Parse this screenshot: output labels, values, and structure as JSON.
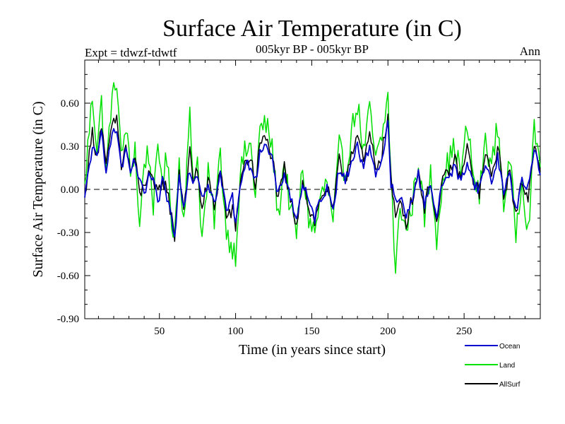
{
  "chart_data": {
    "type": "line",
    "title": "Surface Air Temperature (in C)",
    "subtitle_left": "Expt = tdwzf-tdwtf",
    "subtitle_center": "005kyr BP - 005kyr BP",
    "subtitle_right": "Ann",
    "xlabel": "Time (in years since start)",
    "ylabel": "Surface Air Temperature (in C)",
    "xlim": [
      1,
      300
    ],
    "ylim": [
      -0.9,
      0.9
    ],
    "xticks": [
      50,
      100,
      150,
      200,
      250
    ],
    "xtick_labels": [
      "50",
      "100",
      "150",
      "200",
      "250"
    ],
    "yticks": [
      -0.9,
      -0.6,
      -0.3,
      0.0,
      0.3,
      0.6
    ],
    "ytick_labels": [
      "-0.90",
      "-0.60",
      "-0.30",
      "0.00",
      "0.30",
      "0.60"
    ],
    "zero_line": true,
    "legend_position": "bottom-right",
    "series": [
      {
        "name": "Ocean",
        "color": "#0000cc",
        "anchors_x": [
          1,
          3,
          6,
          9,
          12,
          15,
          18,
          22,
          25,
          28,
          31,
          34,
          37,
          40,
          43,
          46,
          49,
          52,
          55,
          58,
          60,
          63,
          66,
          70,
          72,
          75,
          78,
          82,
          86,
          90,
          94,
          98,
          100,
          103,
          106,
          110,
          113,
          116,
          120,
          124,
          128,
          132,
          136,
          140,
          144,
          148,
          152,
          156,
          160,
          164,
          168,
          172,
          176,
          180,
          184,
          188,
          192,
          196,
          200,
          202,
          205,
          208,
          212,
          216,
          220,
          224,
          228,
          232,
          236,
          240,
          244,
          248,
          252,
          256,
          260,
          264,
          268,
          272,
          276,
          280,
          284,
          288,
          292,
          296,
          300
        ],
        "anchors_y": [
          -0.08,
          0.1,
          0.3,
          0.2,
          0.4,
          0.15,
          0.35,
          0.42,
          0.15,
          0.25,
          0.12,
          0.2,
          0.05,
          -0.05,
          0.1,
          0.05,
          -0.1,
          0.05,
          -0.05,
          -0.2,
          -0.35,
          0.1,
          -0.1,
          0.15,
          0.05,
          0.12,
          -0.05,
          0.05,
          -0.1,
          0.1,
          -0.15,
          -0.05,
          -0.25,
          0.05,
          0.15,
          0.18,
          0.05,
          0.28,
          0.3,
          0.2,
          -0.05,
          0.12,
          -0.05,
          -0.22,
          0.05,
          -0.1,
          -0.2,
          -0.05,
          0.0,
          -0.12,
          0.15,
          0.05,
          0.2,
          0.3,
          0.15,
          0.3,
          0.12,
          0.2,
          0.45,
          0.05,
          -0.1,
          -0.05,
          -0.2,
          -0.05,
          0.1,
          -0.1,
          0.05,
          -0.2,
          0.05,
          0.1,
          0.15,
          0.05,
          0.2,
          0.05,
          0.0,
          0.18,
          0.05,
          0.22,
          0.0,
          0.1,
          -0.15,
          0.05,
          0.0,
          0.3,
          0.12
        ]
      },
      {
        "name": "Land",
        "color": "#00e000",
        "anchors_x": [
          1,
          3,
          6,
          9,
          12,
          15,
          18,
          22,
          25,
          28,
          31,
          34,
          37,
          40,
          43,
          46,
          49,
          52,
          55,
          58,
          60,
          63,
          66,
          70,
          72,
          75,
          78,
          82,
          86,
          90,
          94,
          98,
          100,
          103,
          106,
          110,
          113,
          116,
          120,
          124,
          128,
          132,
          136,
          140,
          144,
          148,
          152,
          156,
          160,
          164,
          168,
          172,
          176,
          180,
          184,
          188,
          192,
          196,
          200,
          202,
          205,
          208,
          212,
          216,
          220,
          224,
          228,
          232,
          236,
          240,
          244,
          248,
          252,
          256,
          260,
          264,
          268,
          272,
          276,
          280,
          284,
          288,
          292,
          296,
          300
        ],
        "anchors_y": [
          0.0,
          0.3,
          0.65,
          0.3,
          0.6,
          0.1,
          0.55,
          0.78,
          0.2,
          0.45,
          0.1,
          0.3,
          -0.28,
          0.2,
          0.25,
          -0.1,
          0.25,
          0.1,
          0.2,
          -0.2,
          -0.3,
          0.2,
          -0.2,
          0.5,
          0.1,
          0.2,
          -0.35,
          0.1,
          -0.2,
          0.25,
          -0.3,
          -0.4,
          -0.45,
          0.1,
          0.25,
          0.3,
          -0.05,
          0.42,
          0.45,
          0.3,
          -0.2,
          0.2,
          -0.15,
          -0.3,
          0.15,
          -0.2,
          -0.3,
          -0.05,
          0.05,
          -0.25,
          0.3,
          0.1,
          0.4,
          0.6,
          0.25,
          0.55,
          0.2,
          0.35,
          0.65,
          0.1,
          -0.6,
          -0.1,
          -0.3,
          -0.1,
          0.2,
          -0.2,
          0.1,
          -0.33,
          0.1,
          0.2,
          0.3,
          0.1,
          0.45,
          0.1,
          -0.05,
          0.35,
          0.15,
          0.45,
          -0.1,
          0.2,
          -0.3,
          0.1,
          -0.3,
          0.4,
          0.2
        ]
      },
      {
        "name": "AllSurf",
        "color": "#000000",
        "anchors_x": [
          1,
          3,
          6,
          9,
          12,
          15,
          18,
          22,
          25,
          28,
          31,
          34,
          37,
          40,
          43,
          46,
          49,
          52,
          55,
          58,
          60,
          63,
          66,
          70,
          72,
          75,
          78,
          82,
          86,
          90,
          94,
          98,
          100,
          103,
          106,
          110,
          113,
          116,
          120,
          124,
          128,
          132,
          136,
          140,
          144,
          148,
          152,
          156,
          160,
          164,
          168,
          172,
          176,
          180,
          184,
          188,
          192,
          196,
          200,
          202,
          205,
          208,
          212,
          216,
          220,
          224,
          228,
          232,
          236,
          240,
          244,
          248,
          252,
          256,
          260,
          264,
          268,
          272,
          276,
          280,
          284,
          288,
          292,
          296,
          300
        ],
        "anchors_y": [
          -0.06,
          0.15,
          0.4,
          0.23,
          0.45,
          0.14,
          0.4,
          0.5,
          0.16,
          0.3,
          0.12,
          0.22,
          -0.04,
          0.02,
          0.14,
          0.02,
          -0.03,
          0.06,
          0.01,
          -0.2,
          -0.33,
          0.13,
          -0.13,
          0.25,
          0.06,
          0.14,
          -0.14,
          0.07,
          -0.13,
          0.15,
          -0.19,
          -0.15,
          -0.28,
          0.06,
          0.18,
          0.22,
          0.03,
          0.32,
          0.35,
          0.23,
          -0.09,
          0.15,
          -0.08,
          -0.24,
          0.08,
          -0.13,
          -0.23,
          -0.05,
          0.01,
          -0.16,
          0.2,
          0.06,
          0.26,
          0.38,
          0.18,
          0.38,
          0.15,
          0.25,
          0.5,
          0.07,
          -0.22,
          -0.06,
          -0.23,
          -0.06,
          0.13,
          -0.13,
          0.07,
          -0.25,
          0.06,
          0.13,
          0.2,
          0.07,
          0.29,
          0.07,
          -0.02,
          0.24,
          0.09,
          0.3,
          -0.03,
          0.13,
          -0.2,
          0.07,
          -0.08,
          0.34,
          0.15
        ]
      }
    ]
  }
}
